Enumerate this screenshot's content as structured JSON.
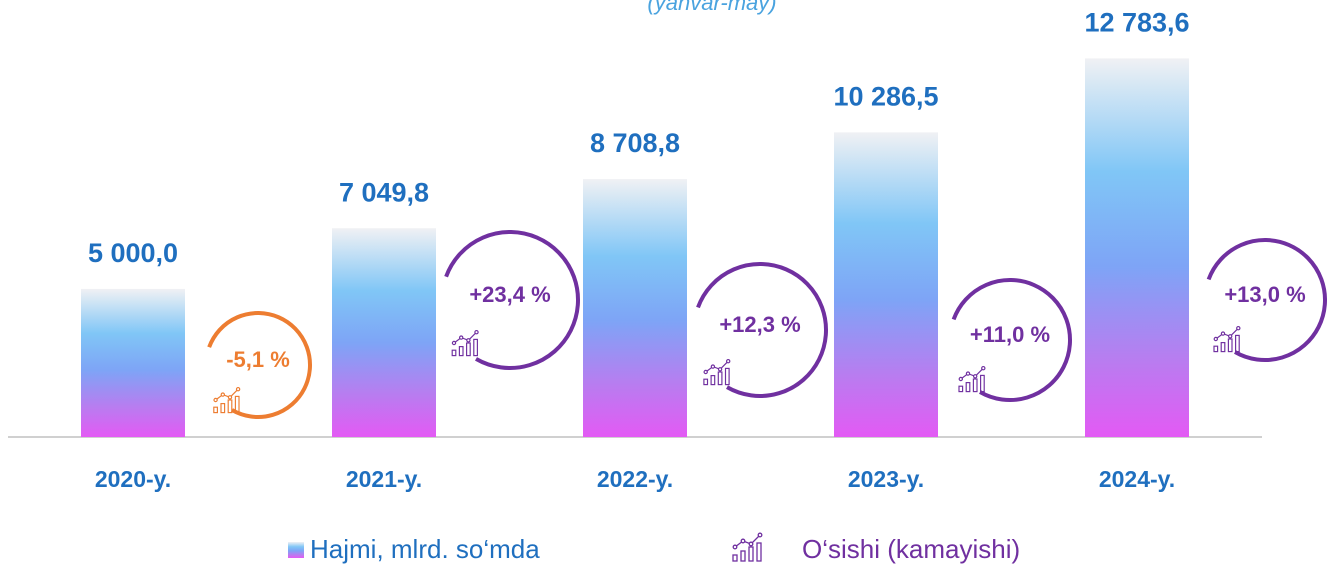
{
  "chart_data": {
    "type": "bar",
    "subtitle": "(yanvar-may)",
    "categories": [
      "2020-y.",
      "2021-y.",
      "2022-y.",
      "2023-y.",
      "2024-y."
    ],
    "series": [
      {
        "name": "Hajmi, mlrd. so‘mda",
        "color": "#7aa7f5",
        "values": [
          5000.0,
          7049.8,
          8708.8,
          10286.5,
          12783.6
        ],
        "value_labels": [
          "5 000,0",
          "7 049,8",
          "8 708,8",
          "10 286,5",
          "12 783,6"
        ]
      },
      {
        "name": "O‘sishi (kamayishi)",
        "color": "#7030a0",
        "negative_color": "#ed7d31",
        "values": [
          -5.1,
          23.4,
          12.3,
          11.0,
          13.0
        ],
        "value_labels": [
          "-5,1 %",
          "+23,4 %",
          "+12,3 %",
          "+11,0 %",
          "+13,0 %"
        ]
      }
    ],
    "ylim": [
      0,
      13000
    ]
  }
}
